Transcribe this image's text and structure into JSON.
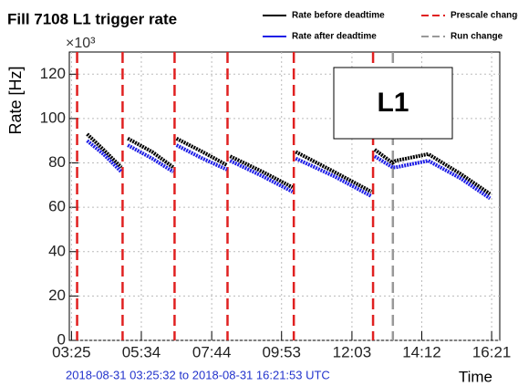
{
  "chart_data": {
    "type": "line",
    "title": "Fill 7108 L1 trigger rate",
    "y_label": "Rate [Hz]",
    "y_multiplier": "×10³",
    "x_label": "Time",
    "subtitle": "2018-08-31 03:25:32 to 2018-08-31 16:21:53 UTC",
    "annotation": "L1",
    "x": [
      3.9,
      4.4,
      4.95,
      5.0,
      5.15,
      5.9,
      6.55,
      6.6,
      6.65,
      7.45,
      8.2,
      8.25,
      8.3,
      9.3,
      10.22,
      10.28,
      10.32,
      11.5,
      12.65,
      12.7,
      12.75,
      13.3,
      13.4,
      14.4,
      15.4,
      16.3
    ],
    "series": [
      {
        "name": "Rate before deadtime",
        "color": "#000000",
        "values": [
          93,
          86,
          78,
          null,
          91,
          85,
          78,
          null,
          91,
          85,
          79,
          null,
          83,
          76,
          69,
          null,
          85,
          76,
          67,
          null,
          86,
          80,
          81,
          84,
          75,
          66
        ]
      },
      {
        "name": "Rate after deadtime",
        "color": "#1f1fe6",
        "values": [
          90,
          84,
          76,
          null,
          88,
          82,
          76,
          null,
          88,
          82,
          77,
          null,
          81,
          74,
          67,
          null,
          82,
          74,
          65,
          null,
          83,
          78,
          78,
          81,
          73,
          64
        ]
      }
    ],
    "markers": [
      {
        "name": "Prescale change",
        "color": "#e02020",
        "x": [
          3.59,
          4.99,
          6.59,
          8.22,
          10.26,
          12.7
        ]
      },
      {
        "name": "Run change",
        "color": "#999999",
        "x": [
          13.31
        ]
      }
    ],
    "xlim": [
      3.35,
      16.6
    ],
    "xticks": [
      {
        "value": 3.4167,
        "label": "03:25"
      },
      {
        "value": 5.5667,
        "label": "05:34"
      },
      {
        "value": 7.7333,
        "label": "07:44"
      },
      {
        "value": 9.8833,
        "label": "09:53"
      },
      {
        "value": 12.05,
        "label": "12:03"
      },
      {
        "value": 14.2,
        "label": "14:12"
      },
      {
        "value": 16.35,
        "label": "16:21"
      }
    ],
    "ylim": [
      0,
      130
    ],
    "yticks": [
      0,
      20,
      40,
      60,
      80,
      100,
      120
    ],
    "grid": true
  }
}
